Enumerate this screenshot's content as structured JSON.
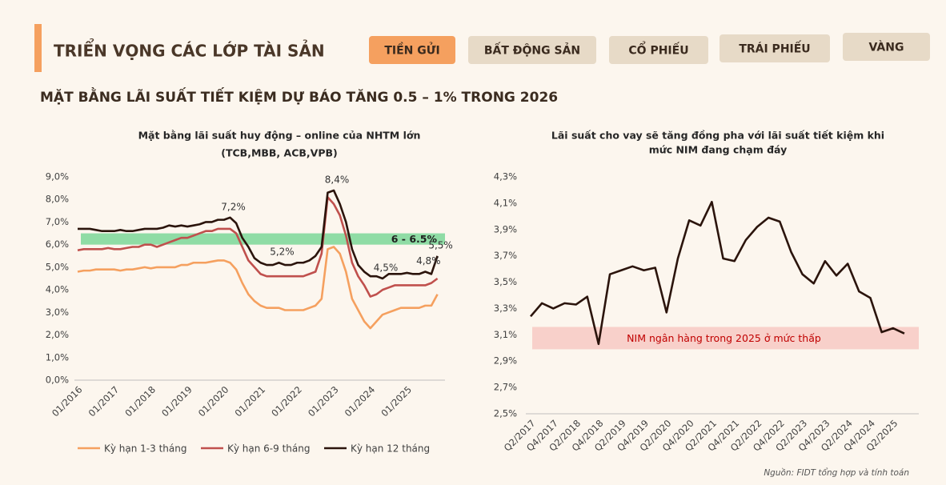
{
  "header": {
    "title": "TRIỂN VỌNG CÁC LỚP TÀI SẢN",
    "tabs": [
      {
        "label": "TIỀN GỬI",
        "active": true
      },
      {
        "label": "BẤT ĐỘNG SẢN",
        "active": false
      },
      {
        "label": "CỔ PHIẾU",
        "active": false
      },
      {
        "label": "TRÁI PHIẾU",
        "active": false
      },
      {
        "label": "VÀNG",
        "active": false
      }
    ]
  },
  "subtitle": "MẶT BẰNG LÃI SUẤT TIẾT KIỆM DỰ BÁO TĂNG 0.5 – 1% TRONG 2026",
  "chart_data": [
    {
      "type": "line",
      "title": [
        "Mặt bằng lãi suất huy động – online của NHTM lớn",
        "(TCB,MBB, ACB,VPB)"
      ],
      "categories": [
        "01/2016",
        null,
        null,
        null,
        null,
        null,
        "01/2017",
        null,
        null,
        null,
        null,
        null,
        "01/2018",
        null,
        null,
        null,
        null,
        null,
        "01/2019",
        null,
        null,
        null,
        null,
        null,
        "01/2020",
        null,
        null,
        null,
        null,
        null,
        "01/2021",
        null,
        null,
        null,
        null,
        null,
        "01/2022",
        null,
        null,
        null,
        null,
        null,
        "01/2023",
        null,
        null,
        null,
        null,
        null,
        "01/2024",
        null,
        null,
        null,
        null,
        null,
        "01/2025",
        null,
        null,
        null,
        null,
        null
      ],
      "series": [
        {
          "name": "Kỳ hạn 1-3 tháng",
          "color": "#f5a05f",
          "values": [
            4.8,
            4.85,
            4.85,
            4.9,
            4.9,
            4.9,
            4.9,
            4.85,
            4.9,
            4.9,
            4.95,
            5.0,
            4.95,
            5.0,
            5.0,
            5.0,
            5.0,
            5.1,
            5.1,
            5.2,
            5.2,
            5.2,
            5.25,
            5.3,
            5.3,
            5.2,
            4.9,
            4.3,
            3.8,
            3.5,
            3.3,
            3.2,
            3.2,
            3.2,
            3.1,
            3.1,
            3.1,
            3.1,
            3.2,
            3.3,
            3.6,
            5.8,
            5.9,
            5.6,
            4.8,
            3.6,
            3.1,
            2.6,
            2.3,
            2.6,
            2.9,
            3.0,
            3.1,
            3.2,
            3.2,
            3.2,
            3.2,
            3.3,
            3.3,
            3.8
          ]
        },
        {
          "name": "Kỳ hạn 6-9 tháng",
          "color": "#c0504d",
          "values": [
            5.75,
            5.8,
            5.8,
            5.8,
            5.8,
            5.85,
            5.8,
            5.8,
            5.85,
            5.9,
            5.9,
            6.0,
            6.0,
            5.9,
            6.0,
            6.1,
            6.2,
            6.3,
            6.3,
            6.4,
            6.5,
            6.6,
            6.6,
            6.7,
            6.7,
            6.7,
            6.5,
            5.9,
            5.3,
            5.0,
            4.7,
            4.6,
            4.6,
            4.6,
            4.6,
            4.6,
            4.6,
            4.6,
            4.7,
            4.8,
            5.6,
            8.1,
            7.8,
            7.3,
            6.4,
            5.2,
            4.6,
            4.2,
            3.7,
            3.8,
            4.0,
            4.1,
            4.2,
            4.2,
            4.2,
            4.2,
            4.2,
            4.2,
            4.3,
            4.5
          ]
        },
        {
          "name": "Kỳ hạn 12 tháng",
          "color": "#2b140c",
          "values": [
            6.7,
            6.7,
            6.7,
            6.65,
            6.6,
            6.6,
            6.6,
            6.65,
            6.6,
            6.6,
            6.65,
            6.7,
            6.7,
            6.7,
            6.75,
            6.85,
            6.8,
            6.85,
            6.8,
            6.85,
            6.9,
            7.0,
            7.0,
            7.1,
            7.1,
            7.2,
            6.95,
            6.3,
            5.9,
            5.4,
            5.2,
            5.1,
            5.1,
            5.2,
            5.1,
            5.1,
            5.2,
            5.2,
            5.3,
            5.5,
            5.9,
            8.3,
            8.4,
            7.8,
            7.0,
            5.8,
            5.1,
            4.8,
            4.6,
            4.6,
            4.5,
            4.7,
            4.7,
            4.7,
            4.75,
            4.7,
            4.7,
            4.8,
            4.7,
            5.5
          ],
          "value_labels": [
            null,
            null,
            null,
            null,
            null,
            null,
            null,
            null,
            null,
            null,
            null,
            null,
            null,
            null,
            null,
            null,
            null,
            null,
            null,
            null,
            null,
            null,
            null,
            null,
            null,
            "7,2%",
            null,
            null,
            null,
            null,
            null,
            null,
            null,
            "5,2%",
            null,
            null,
            null,
            null,
            null,
            null,
            null,
            null,
            "8,4%",
            null,
            null,
            null,
            null,
            null,
            null,
            null,
            "4,5%",
            null,
            null,
            null,
            null,
            null,
            null,
            "4,8%",
            null,
            "5,5%"
          ]
        }
      ],
      "ylim": [
        0,
        9
      ],
      "yticks": [
        {
          "value": 0,
          "label": "0,0%"
        },
        {
          "value": 1,
          "label": "1,0%"
        },
        {
          "value": 2,
          "label": "2,0%"
        },
        {
          "value": 3,
          "label": "3,0%"
        },
        {
          "value": 4,
          "label": "4,0%"
        },
        {
          "value": 5,
          "label": "5,0%"
        },
        {
          "value": 6,
          "label": "6,0%"
        },
        {
          "value": 7,
          "label": "7,0%"
        },
        {
          "value": 8,
          "label": "8,0%"
        },
        {
          "value": 9,
          "label": "9,0%"
        }
      ],
      "band": {
        "from": 6,
        "to": 6.5,
        "label": "6 - 6.5%",
        "color": "#8fdca5",
        "label_color": "#1f1f1f"
      },
      "grid": false,
      "legend": "bottom"
    },
    {
      "type": "line",
      "title": [
        "Lãi suất cho vay sẽ tăng đồng pha với lãi suất tiết kiệm khi",
        "mức NIM đang chạm đáy"
      ],
      "categories": [
        "Q2/2017",
        null,
        "Q4/2017",
        null,
        "Q2/2018",
        null,
        "Q4/2018",
        null,
        "Q2/2019",
        null,
        "Q4/2019",
        null,
        "Q2/2020",
        null,
        "Q4/2020",
        null,
        "Q2/2021",
        null,
        "Q4/2021",
        null,
        "Q2/2022",
        null,
        "Q4/2022",
        null,
        "Q2/2023",
        null,
        "Q4/2023",
        null,
        "Q2/2024",
        null,
        "Q4/2024",
        null,
        "Q2/2025",
        null
      ],
      "series": [
        {
          "color": "#2b140c",
          "values": [
            3.24,
            3.34,
            3.3,
            3.34,
            3.33,
            3.39,
            3.03,
            3.56,
            3.59,
            3.62,
            3.59,
            3.61,
            3.27,
            3.68,
            3.97,
            3.93,
            4.11,
            3.68,
            3.66,
            3.82,
            3.92,
            3.99,
            3.96,
            3.73,
            3.56,
            3.49,
            3.66,
            3.55,
            3.64,
            3.43,
            3.38,
            3.12,
            3.15,
            3.11
          ]
        }
      ],
      "ylim": [
        2.5,
        4.3
      ],
      "yticks": [
        {
          "value": 2.5,
          "label": "2,5%"
        },
        {
          "value": 2.7,
          "label": "2,7%"
        },
        {
          "value": 2.9,
          "label": "2,9%"
        },
        {
          "value": 3.1,
          "label": "3,1%"
        },
        {
          "value": 3.3,
          "label": "3,3%"
        },
        {
          "value": 3.5,
          "label": "3,5%"
        },
        {
          "value": 3.7,
          "label": "3,7%"
        },
        {
          "value": 3.9,
          "label": "3,9%"
        },
        {
          "value": 4.1,
          "label": "4,1%"
        },
        {
          "value": 4.3,
          "label": "4,3%"
        }
      ],
      "band": {
        "from": 2.99,
        "to": 3.16,
        "label": "NIM ngân hàng trong 2025 ở mức thấp",
        "color": "#f8d0ca",
        "label_color": "#c00000"
      },
      "grid": false
    }
  ],
  "source": "Nguồn: FIDT tổng hợp và tính toán"
}
